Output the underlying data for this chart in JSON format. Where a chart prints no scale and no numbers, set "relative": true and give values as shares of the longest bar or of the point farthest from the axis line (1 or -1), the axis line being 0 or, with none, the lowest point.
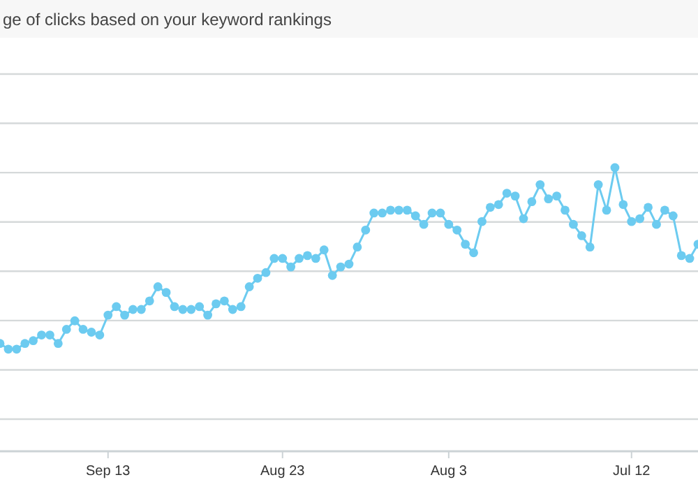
{
  "chart_data": {
    "type": "line",
    "title": "ge of clicks based on your keyword rankings",
    "relative": true,
    "grid": "y",
    "marker": "circle",
    "line_style": "solid",
    "x": [
      "--09-26",
      "--09-25",
      "--09-24",
      "--09-23",
      "--09-22",
      "--09-21",
      "--09-20",
      "--09-19",
      "--09-18",
      "--09-17",
      "--09-16",
      "--09-15",
      "--09-14",
      "--09-13",
      "--09-12",
      "--09-11",
      "--09-10",
      "--09-09",
      "--09-08",
      "--09-07",
      "--09-06",
      "--09-05",
      "--09-04",
      "--09-03",
      "--09-02",
      "--09-01",
      "--08-31",
      "--08-30",
      "--08-29",
      "--08-28",
      "--08-27",
      "--08-26",
      "--08-25",
      "--08-24",
      "--08-23",
      "--08-22",
      "--08-21",
      "--08-20",
      "--08-19",
      "--08-18",
      "--08-17",
      "--08-16",
      "--08-15",
      "--08-14",
      "--08-13",
      "--08-12",
      "--08-11",
      "--08-10",
      "--08-09",
      "--08-08",
      "--08-07",
      "--08-06",
      "--08-05",
      "--08-04",
      "--08-03",
      "--08-02",
      "--08-01",
      "--07-31",
      "--07-30",
      "--07-29",
      "--07-28",
      "--07-27",
      "--07-26",
      "--07-25",
      "--07-24",
      "--07-23",
      "--07-22",
      "--07-21",
      "--07-20",
      "--07-19",
      "--07-18",
      "--07-17",
      "--07-16",
      "--07-15",
      "--07-14",
      "--07-13",
      "--07-12",
      "--07-11",
      "--07-10",
      "--07-09",
      "--07-08",
      "--07-07",
      "--07-06",
      "--07-05",
      "--07-04"
    ],
    "xlim": [
      "--09-26",
      "--07-04"
    ],
    "xticks": [
      {
        "value": "--09-13",
        "label": "Sep 13"
      },
      {
        "value": "--08-23",
        "label": "Aug 23"
      },
      {
        "value": "--08-03",
        "label": "Aug 3"
      },
      {
        "value": "--07-12",
        "label": "Jul 12"
      }
    ],
    "series": [
      {
        "color": "#6ccbf0",
        "values": [
          0.38,
          0.36,
          0.36,
          0.38,
          0.39,
          0.41,
          0.41,
          0.38,
          0.43,
          0.46,
          0.43,
          0.42,
          0.41,
          0.48,
          0.51,
          0.48,
          0.5,
          0.5,
          0.53,
          0.58,
          0.56,
          0.51,
          0.5,
          0.5,
          0.51,
          0.48,
          0.52,
          0.53,
          0.5,
          0.51,
          0.58,
          0.61,
          0.63,
          0.68,
          0.68,
          0.65,
          0.68,
          0.69,
          0.68,
          0.71,
          0.62,
          0.65,
          0.66,
          0.72,
          0.78,
          0.84,
          0.84,
          0.85,
          0.85,
          0.85,
          0.83,
          0.8,
          0.84,
          0.84,
          0.8,
          0.78,
          0.73,
          0.7,
          0.81,
          0.86,
          0.87,
          0.91,
          0.9,
          0.82,
          0.88,
          0.94,
          0.89,
          0.9,
          0.85,
          0.8,
          0.76,
          0.72,
          0.94,
          0.85,
          1,
          0.87,
          0.81,
          0.82,
          0.86,
          0.8,
          0.85,
          0.83,
          0.69,
          0.68,
          0.73
        ]
      }
    ]
  }
}
